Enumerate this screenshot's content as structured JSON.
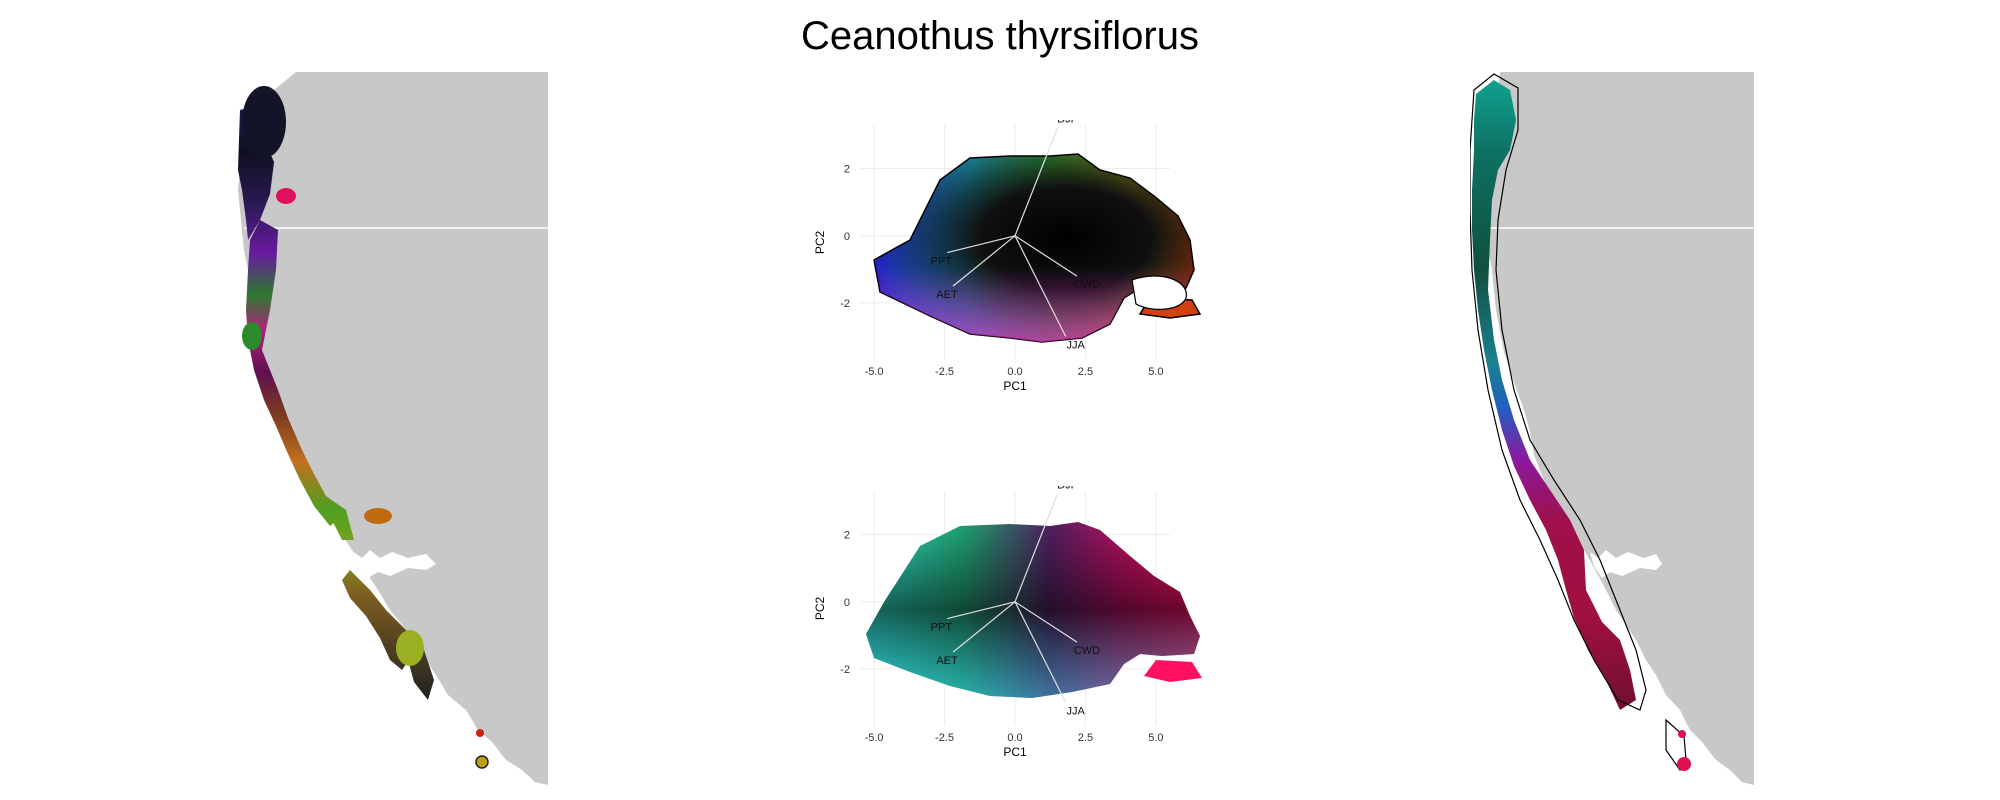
{
  "title": "Ceanothus thyrsiflorus",
  "colors": {
    "land": "#c8c8c8",
    "background": "#ffffff",
    "outline": "#000000",
    "vector": "#e0e0e0"
  },
  "maps": [
    {
      "name": "left-map",
      "color_scheme": "rgb-climate-space"
    },
    {
      "name": "right-map",
      "color_scheme": "teal-magenta-climate-space",
      "outline": true
    }
  ],
  "chart_data": [
    {
      "type": "scatter",
      "name": "climate-pca-top",
      "xlabel": "PC1",
      "ylabel": "PC2",
      "xlim": [
        -5.5,
        5.5
      ],
      "ylim": [
        -3.7,
        3.3
      ],
      "xticks": [
        -5.0,
        -2.5,
        0.0,
        2.5,
        5.0
      ],
      "xtick_labels": [
        "-5.0",
        "-2.5",
        "0.0",
        "2.5",
        "5.0"
      ],
      "yticks": [
        2,
        0,
        -2
      ],
      "ytick_labels": [
        "2",
        "0",
        "-2"
      ],
      "grid": true,
      "vectors": [
        {
          "label": "DJF",
          "x": 1.5,
          "y": 3.2
        },
        {
          "label": "PPT",
          "x": -2.4,
          "y": -0.5
        },
        {
          "label": "AET",
          "x": -2.2,
          "y": -1.5
        },
        {
          "label": "CWD",
          "x": 2.2,
          "y": -1.2
        },
        {
          "label": "JJA",
          "x": 1.8,
          "y": -3.0
        }
      ]
    },
    {
      "type": "scatter",
      "name": "climate-pca-bottom",
      "xlabel": "PC1",
      "ylabel": "PC2",
      "xlim": [
        -5.5,
        5.5
      ],
      "ylim": [
        -3.7,
        3.3
      ],
      "xticks": [
        -5.0,
        -2.5,
        0.0,
        2.5,
        5.0
      ],
      "xtick_labels": [
        "-5.0",
        "-2.5",
        "0.0",
        "2.5",
        "5.0"
      ],
      "yticks": [
        2,
        0,
        -2
      ],
      "ytick_labels": [
        "2",
        "0",
        "-2"
      ],
      "grid": true,
      "vectors": [
        {
          "label": "DJF",
          "x": 1.5,
          "y": 3.2
        },
        {
          "label": "PPT",
          "x": -2.4,
          "y": -0.5
        },
        {
          "label": "AET",
          "x": -2.2,
          "y": -1.5
        },
        {
          "label": "CWD",
          "x": 2.2,
          "y": -1.2
        },
        {
          "label": "JJA",
          "x": 1.8,
          "y": -3.0
        }
      ]
    }
  ]
}
